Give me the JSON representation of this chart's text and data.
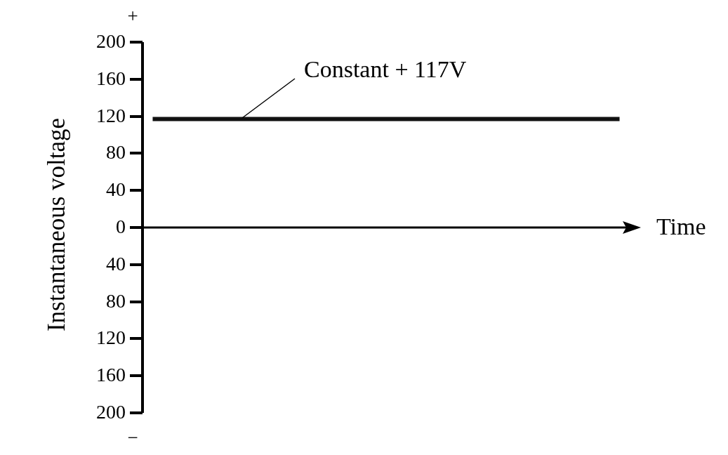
{
  "chart_data": {
    "type": "line",
    "categories": [
      null,
      null,
      null,
      null,
      null,
      null,
      null,
      null,
      null,
      null,
      null,
      null,
      null,
      null,
      null,
      null,
      null,
      null,
      null,
      null,
      null,
      null,
      null,
      null
    ],
    "values": [
      117,
      117,
      117,
      117,
      117,
      117,
      117,
      117,
      117,
      117,
      117,
      117,
      117,
      117,
      117,
      117,
      117,
      117,
      117,
      117,
      117,
      117,
      117,
      117
    ],
    "color": "#111111",
    "ylabel": "Instantaneous voltage",
    "xlabel": "Time",
    "ylim": [
      -200,
      200
    ],
    "yticks": [
      {
        "value": -200,
        "label": "200"
      },
      {
        "value": -160,
        "label": "160"
      },
      {
        "value": -120,
        "label": "120"
      },
      {
        "value": -80,
        "label": "80"
      },
      {
        "value": -40,
        "label": "40"
      },
      0,
      40,
      80,
      120,
      160,
      200
    ],
    "tick_labels": "y",
    "line_style": "solid",
    "annotations": [
      "+",
      "−",
      "Constant + 117V"
    ]
  }
}
